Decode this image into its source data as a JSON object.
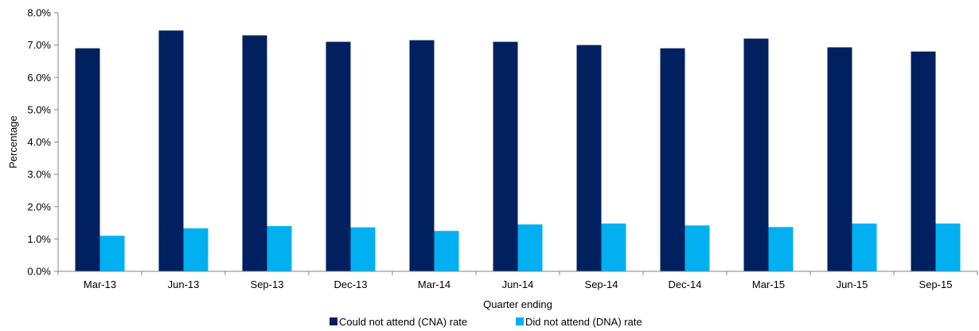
{
  "chart_data": {
    "type": "bar",
    "title": "",
    "xlabel": "Quarter ending",
    "ylabel": "Percentage",
    "ylim": [
      0,
      8
    ],
    "yticks": [
      "0.0%",
      "1.0%",
      "2.0%",
      "3.0%",
      "4.0%",
      "5.0%",
      "6.0%",
      "7.0%",
      "8.0%"
    ],
    "grid": false,
    "legend_position": "bottom",
    "categories": [
      "Mar-13",
      "Jun-13",
      "Sep-13",
      "Dec-13",
      "Mar-14",
      "Jun-14",
      "Sep-14",
      "Dec-14",
      "Mar-15",
      "Jun-15",
      "Sep-15"
    ],
    "series": [
      {
        "name": "Could not attend (CNA) rate",
        "color": "#002060",
        "values": [
          6.9,
          7.45,
          7.3,
          7.1,
          7.15,
          7.1,
          7.0,
          6.9,
          7.2,
          6.93,
          6.8
        ]
      },
      {
        "name": "Did not attend (DNA) rate",
        "color": "#00B0F0",
        "values": [
          1.1,
          1.33,
          1.4,
          1.36,
          1.25,
          1.45,
          1.48,
          1.42,
          1.37,
          1.48,
          1.48
        ]
      }
    ]
  }
}
